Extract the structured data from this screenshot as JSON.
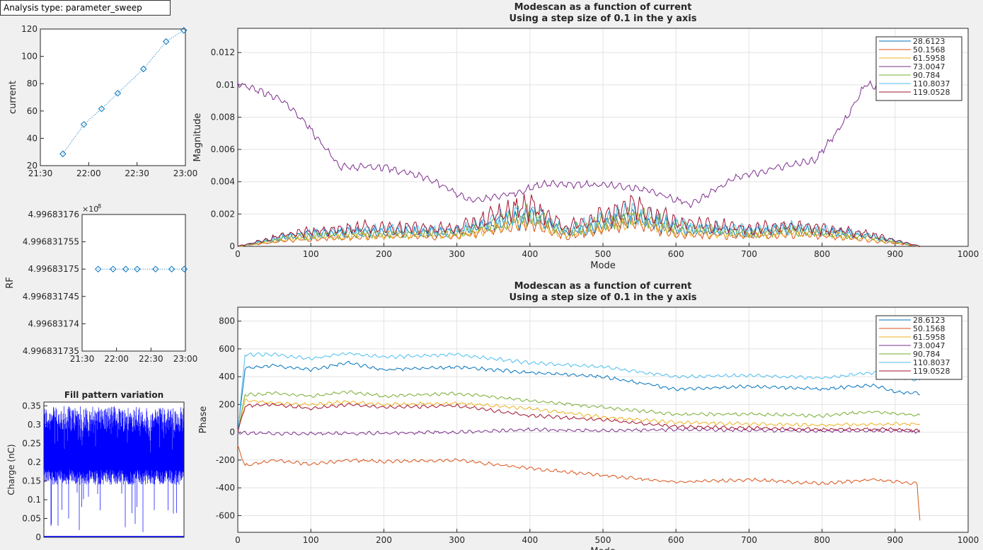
{
  "analysis_label": "Analysis type: parameter_sweep",
  "chart_data": [
    {
      "id": "current",
      "type": "line",
      "title": "",
      "xlabel": "",
      "ylabel": "current",
      "x_ticks": [
        "21:30",
        "22:00",
        "22:30",
        "23:00"
      ],
      "y_ticks": [
        "20",
        "40",
        "60",
        "80",
        "100",
        "120"
      ],
      "xlim_minutes": [
        0,
        90
      ],
      "ylim": [
        20,
        120
      ],
      "marker": "diamond",
      "line_style": "dotted",
      "color": "#0072bd",
      "x_minutes": [
        14,
        27,
        38,
        48,
        64,
        78,
        89
      ],
      "values": [
        28.6123,
        50.1568,
        61.5958,
        73.0047,
        90.784,
        110.8037,
        119.0528
      ]
    },
    {
      "id": "rf",
      "type": "line",
      "title": "",
      "xlabel": "",
      "ylabel": "RF",
      "exponent_label": "×10",
      "exponent_power": "8",
      "x_ticks": [
        "21:30",
        "22:00",
        "22:30",
        "23:00"
      ],
      "y_ticks": [
        "4.996831735",
        "4.99683174",
        "4.996831745",
        "4.99683175",
        "4.996831755",
        "4.99683176"
      ],
      "xlim_minutes": [
        0,
        90
      ],
      "ylim": [
        4.996831735,
        4.99683176
      ],
      "marker": "diamond",
      "line_style": "dotted",
      "color": "#0072bd",
      "x_minutes": [
        14,
        27,
        38,
        48,
        64,
        78,
        89
      ],
      "values": [
        4.99683175,
        4.99683175,
        4.99683175,
        4.99683175,
        4.99683175,
        4.99683175,
        4.99683175
      ]
    },
    {
      "id": "fill",
      "type": "bar",
      "title": "Fill pattern variation",
      "xlabel": "",
      "ylabel": "Charge (nC)",
      "y_ticks": [
        "0",
        "0.05",
        "0.1",
        "0.15",
        "0.2",
        "0.25",
        "0.3",
        "0.35"
      ],
      "ylim": [
        0,
        0.36
      ],
      "color": "#0000ff",
      "approximate_range": [
        0.14,
        0.35
      ]
    },
    {
      "id": "magnitude",
      "type": "line",
      "title": "Modescan as a function of current",
      "subtitle": "Using a step size of 0.1 in the y axis",
      "xlabel": "Mode",
      "ylabel": "Magnitude",
      "x_ticks": [
        "0",
        "100",
        "200",
        "300",
        "400",
        "500",
        "600",
        "700",
        "800",
        "900",
        "1000"
      ],
      "y_ticks": [
        "0",
        "0.002",
        "0.004",
        "0.006",
        "0.008",
        "0.01",
        "0.012"
      ],
      "xlim": [
        0,
        1000
      ],
      "ylim": [
        0,
        0.0135
      ],
      "grid": true,
      "legend_position": "top-right",
      "series": [
        {
          "name": "28.6123",
          "color": "#0072bd",
          "x": [
            0,
            75,
            170,
            300,
            400,
            450,
            540,
            600,
            700,
            760,
            860,
            935
          ],
          "values": [
            0,
            0.0007,
            0.0009,
            0.0009,
            0.0018,
            0.0008,
            0.0018,
            0.0011,
            0.0009,
            0.0011,
            0.0007,
            0
          ]
        },
        {
          "name": "50.1568",
          "color": "#d95319",
          "x": [
            0,
            75,
            170,
            300,
            400,
            450,
            540,
            600,
            700,
            760,
            860,
            935
          ],
          "values": [
            0,
            0.0004,
            0.0006,
            0.0006,
            0.0015,
            0.0006,
            0.0015,
            0.0008,
            0.0006,
            0.0008,
            0.0004,
            0
          ]
        },
        {
          "name": "61.5958",
          "color": "#edb120",
          "x": [
            0,
            75,
            170,
            300,
            400,
            450,
            540,
            600,
            700,
            760,
            860,
            935
          ],
          "values": [
            0,
            0.0005,
            0.0007,
            0.0007,
            0.0016,
            0.0007,
            0.0016,
            0.0009,
            0.0007,
            0.0009,
            0.0005,
            0
          ]
        },
        {
          "name": "73.0047",
          "color": "#7e2f8e",
          "x": [
            0,
            60,
            90,
            140,
            200,
            260,
            320,
            380,
            420,
            500,
            560,
            620,
            680,
            740,
            790,
            830,
            860,
            890
          ],
          "values": [
            0.0101,
            0.0091,
            0.0078,
            0.0049,
            0.0049,
            0.0042,
            0.0028,
            0.0033,
            0.0039,
            0.0038,
            0.0035,
            0.0026,
            0.0042,
            0.0049,
            0.0053,
            0.0077,
            0.0101,
            0.0097
          ]
        },
        {
          "name": "90.784",
          "color": "#77ac30",
          "x": [
            0,
            75,
            170,
            300,
            400,
            450,
            540,
            600,
            700,
            760,
            860,
            935
          ],
          "values": [
            0,
            0.0006,
            0.0008,
            0.0008,
            0.002,
            0.0009,
            0.002,
            0.0012,
            0.0008,
            0.001,
            0.0006,
            0
          ]
        },
        {
          "name": "110.8037",
          "color": "#4dbeee",
          "x": [
            0,
            75,
            170,
            300,
            400,
            450,
            540,
            600,
            700,
            760,
            860,
            935
          ],
          "values": [
            0,
            0.0007,
            0.001,
            0.001,
            0.0022,
            0.001,
            0.0022,
            0.0013,
            0.001,
            0.0012,
            0.0007,
            0
          ]
        },
        {
          "name": "119.0528",
          "color": "#a2142f",
          "x": [
            0,
            75,
            170,
            300,
            400,
            450,
            540,
            600,
            700,
            760,
            860,
            935
          ],
          "values": [
            0,
            0.0008,
            0.0012,
            0.0011,
            0.0026,
            0.0011,
            0.0026,
            0.0015,
            0.0011,
            0.0013,
            0.0008,
            0
          ]
        }
      ]
    },
    {
      "id": "phase",
      "type": "line",
      "title": "Modescan as a function of current",
      "subtitle": "Using a step size of 0.1 in the y axis",
      "xlabel": "Mode",
      "ylabel": "Phase",
      "x_ticks": [
        "0",
        "100",
        "200",
        "300",
        "400",
        "500",
        "600",
        "700",
        "800",
        "900",
        "1000"
      ],
      "y_ticks": [
        "-600",
        "-400",
        "-200",
        "0",
        "200",
        "400",
        "600",
        "800"
      ],
      "xlim": [
        0,
        1000
      ],
      "ylim": [
        -720,
        900
      ],
      "grid": true,
      "legend_position": "top-right",
      "series": [
        {
          "name": "28.6123",
          "color": "#0072bd",
          "x": [
            0,
            10,
            50,
            100,
            150,
            200,
            300,
            400,
            500,
            600,
            700,
            800,
            870,
            900,
            935
          ],
          "values": [
            0,
            460,
            480,
            450,
            500,
            450,
            470,
            430,
            400,
            310,
            330,
            310,
            340,
            290,
            280
          ]
        },
        {
          "name": "50.1568",
          "color": "#d95319",
          "x": [
            0,
            10,
            50,
            100,
            150,
            200,
            300,
            400,
            500,
            600,
            700,
            800,
            870,
            930,
            935
          ],
          "values": [
            -100,
            -240,
            -200,
            -230,
            -200,
            -210,
            -200,
            -260,
            -310,
            -360,
            -340,
            -370,
            -340,
            -370,
            -700
          ]
        },
        {
          "name": "61.5958",
          "color": "#edb120",
          "x": [
            0,
            10,
            50,
            100,
            150,
            200,
            300,
            400,
            500,
            600,
            700,
            800,
            900,
            935
          ],
          "values": [
            0,
            230,
            210,
            200,
            220,
            200,
            210,
            170,
            110,
            70,
            60,
            50,
            60,
            60
          ]
        },
        {
          "name": "73.0047",
          "color": "#7e2f8e",
          "x": [
            0,
            10,
            100,
            200,
            300,
            400,
            500,
            600,
            700,
            800,
            900,
            935
          ],
          "values": [
            -10,
            -5,
            -10,
            -5,
            0,
            20,
            10,
            20,
            15,
            10,
            10,
            5
          ]
        },
        {
          "name": "90.784",
          "color": "#77ac30",
          "x": [
            0,
            10,
            50,
            100,
            150,
            200,
            300,
            400,
            500,
            600,
            700,
            800,
            870,
            935
          ],
          "values": [
            0,
            270,
            280,
            260,
            290,
            260,
            280,
            230,
            180,
            130,
            130,
            120,
            150,
            120
          ]
        },
        {
          "name": "110.8037",
          "color": "#4dbeee",
          "x": [
            0,
            10,
            50,
            100,
            150,
            200,
            300,
            400,
            500,
            600,
            700,
            800,
            870,
            935
          ],
          "values": [
            0,
            560,
            560,
            530,
            570,
            540,
            560,
            500,
            470,
            400,
            410,
            390,
            430,
            370
          ]
        },
        {
          "name": "119.0528",
          "color": "#a2142f",
          "x": [
            0,
            10,
            50,
            100,
            150,
            200,
            300,
            400,
            500,
            600,
            700,
            800,
            900,
            935
          ],
          "values": [
            0,
            190,
            200,
            170,
            200,
            180,
            190,
            120,
            90,
            40,
            30,
            20,
            20,
            10
          ]
        }
      ]
    }
  ]
}
